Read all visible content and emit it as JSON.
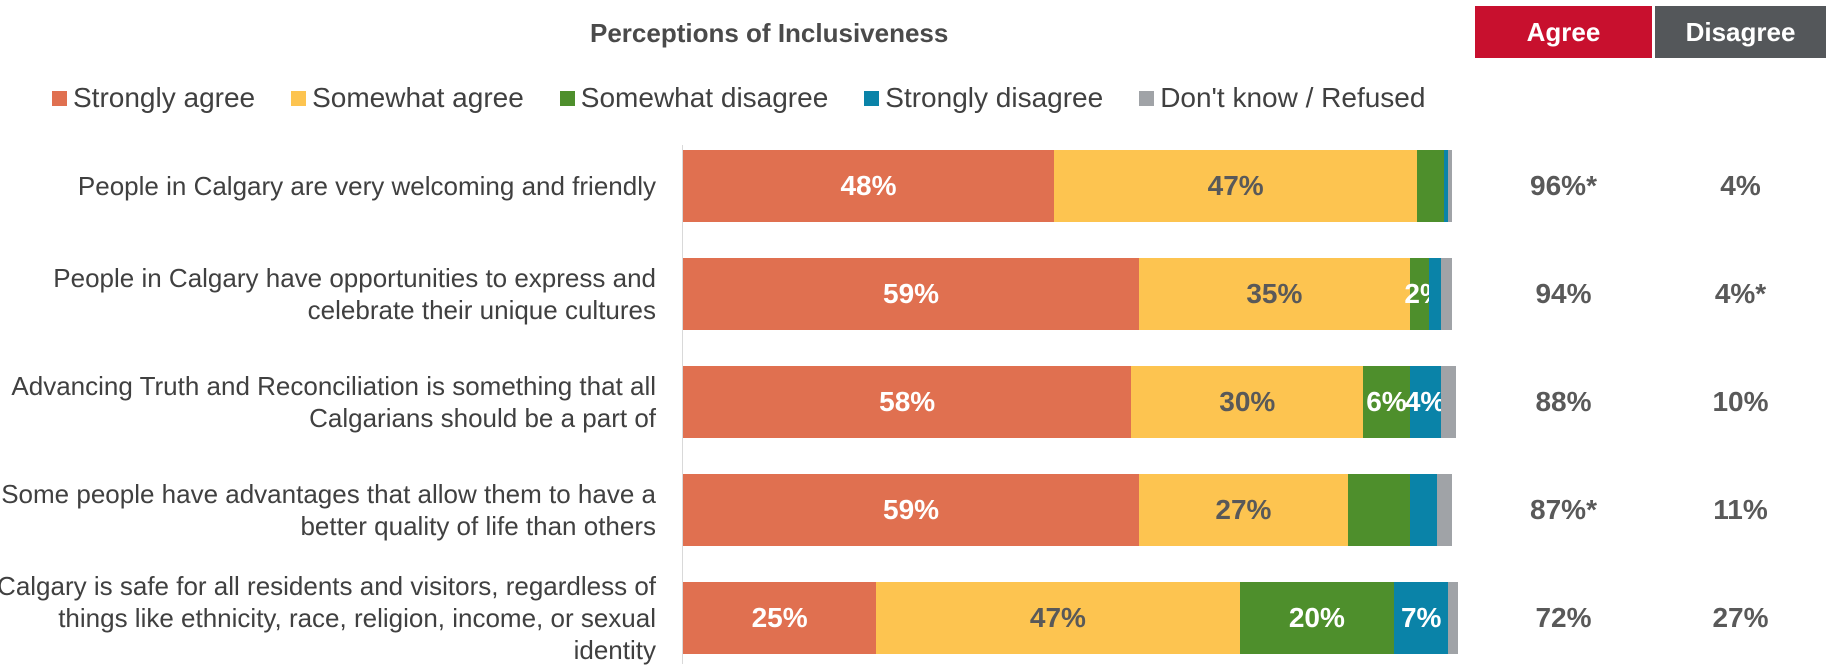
{
  "title": "Perceptions of Inclusiveness",
  "headers": {
    "agree": "Agree",
    "disagree": "Disagree"
  },
  "colors": {
    "strongly_agree": "#e07050",
    "somewhat_agree": "#fdc450",
    "somewhat_disagree": "#4e8f2c",
    "strongly_disagree": "#0a83a8",
    "dont_know": "#a0a3a7",
    "agree_header": "#c8102e",
    "disagree_header": "#54575a"
  },
  "chart_data": {
    "type": "bar",
    "orientation": "horizontal",
    "stacked": true,
    "title": "Perceptions of Inclusiveness",
    "xlim": [
      0,
      100
    ],
    "legend_position": "top",
    "categories": [
      "People in Calgary are very welcoming and friendly",
      "People in Calgary have opportunities to express and celebrate their unique cultures",
      "Advancing Truth and Reconciliation is something that all Calgarians should be a part of",
      "Some people have advantages that allow them to have a better quality of life than others",
      "Calgary is safe for all residents and visitors, regardless of things like ethnicity, race, religion, income, or sexual identity"
    ],
    "series": [
      {
        "name": "Strongly agree",
        "key": "strongly_agree",
        "values": [
          48,
          59,
          58,
          59,
          25
        ],
        "labels": [
          "48%",
          "59%",
          "58%",
          "59%",
          "25%"
        ]
      },
      {
        "name": "Somewhat agree",
        "key": "somewhat_agree",
        "values": [
          47,
          35,
          30,
          27,
          47
        ],
        "labels": [
          "47%",
          "35%",
          "30%",
          "27%",
          "47%"
        ]
      },
      {
        "name": "Somewhat disagree",
        "key": "somewhat_disagree",
        "values": [
          3.5,
          2.5,
          6,
          8,
          20
        ],
        "labels": [
          "",
          "2%",
          "6%",
          "",
          "20%"
        ]
      },
      {
        "name": "Strongly disagree",
        "key": "strongly_disagree",
        "values": [
          0.5,
          1.5,
          4,
          3.5,
          7
        ],
        "labels": [
          "",
          "",
          "4%",
          "",
          "7%"
        ]
      },
      {
        "name": "Don't know / Refused",
        "key": "dont_know",
        "values": [
          0.5,
          1.5,
          2,
          2,
          1.3
        ],
        "labels": [
          "",
          "",
          "",
          "",
          ""
        ]
      }
    ],
    "agree_totals": [
      "96%*",
      "94%",
      "88%",
      "87%*",
      "72%"
    ],
    "disagree_totals": [
      "4%",
      "4%*",
      "10%",
      "11%",
      "27%"
    ]
  }
}
